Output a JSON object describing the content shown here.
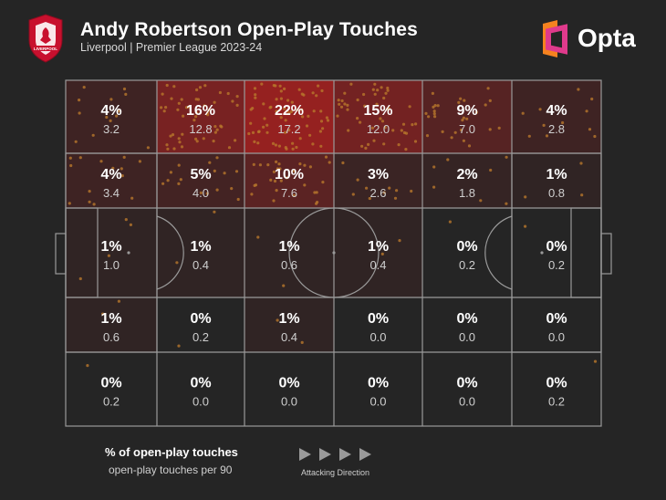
{
  "header": {
    "title": "Andy Robertson Open-Play Touches",
    "subtitle": "Liverpool | Premier League 2023-24",
    "crest_text": "LIVERPOOL",
    "brand": "Opta"
  },
  "chart_data": {
    "type": "heatmap",
    "title": "Andy Robertson Open-Play Touches",
    "subtitle": "Liverpool | Premier League 2023-24",
    "grid": {
      "rows": 5,
      "cols": 6
    },
    "cells": [
      [
        {
          "pct": "4%",
          "per90": "3.2",
          "share": 4
        },
        {
          "pct": "16%",
          "per90": "12.8",
          "share": 16
        },
        {
          "pct": "22%",
          "per90": "17.2",
          "share": 22
        },
        {
          "pct": "15%",
          "per90": "12.0",
          "share": 15
        },
        {
          "pct": "9%",
          "per90": "7.0",
          "share": 9
        },
        {
          "pct": "4%",
          "per90": "2.8",
          "share": 4
        }
      ],
      [
        {
          "pct": "4%",
          "per90": "3.4",
          "share": 4
        },
        {
          "pct": "5%",
          "per90": "4.0",
          "share": 5
        },
        {
          "pct": "10%",
          "per90": "7.6",
          "share": 10
        },
        {
          "pct": "3%",
          "per90": "2.6",
          "share": 3
        },
        {
          "pct": "2%",
          "per90": "1.8",
          "share": 2
        },
        {
          "pct": "1%",
          "per90": "0.8",
          "share": 1
        }
      ],
      [
        {
          "pct": "1%",
          "per90": "1.0",
          "share": 1
        },
        {
          "pct": "1%",
          "per90": "0.4",
          "share": 1
        },
        {
          "pct": "1%",
          "per90": "0.6",
          "share": 1
        },
        {
          "pct": "1%",
          "per90": "0.4",
          "share": 1
        },
        {
          "pct": "0%",
          "per90": "0.2",
          "share": 0
        },
        {
          "pct": "0%",
          "per90": "0.2",
          "share": 0
        }
      ],
      [
        {
          "pct": "1%",
          "per90": "0.6",
          "share": 1
        },
        {
          "pct": "0%",
          "per90": "0.2",
          "share": 0
        },
        {
          "pct": "1%",
          "per90": "0.4",
          "share": 1
        },
        {
          "pct": "0%",
          "per90": "0.0",
          "share": 0
        },
        {
          "pct": "0%",
          "per90": "0.0",
          "share": 0
        },
        {
          "pct": "0%",
          "per90": "0.0",
          "share": 0
        }
      ],
      [
        {
          "pct": "0%",
          "per90": "0.2",
          "share": 0
        },
        {
          "pct": "0%",
          "per90": "0.0",
          "share": 0
        },
        {
          "pct": "0%",
          "per90": "0.0",
          "share": 0
        },
        {
          "pct": "0%",
          "per90": "0.0",
          "share": 0
        },
        {
          "pct": "0%",
          "per90": "0.0",
          "share": 0
        },
        {
          "pct": "0%",
          "per90": "0.2",
          "share": 0
        }
      ]
    ],
    "attacking_direction": "left-to-right"
  },
  "legend": {
    "pct_label": "% of open-play touches",
    "per90_label": "open-play touches per 90",
    "direction_label": "Attacking Direction"
  },
  "colors": {
    "background": "#252525",
    "pitch_lines": "#9a9a9a",
    "heat": "#c0201f",
    "dots": "#b8772c",
    "opta_orange": "#f5821f",
    "opta_pink": "#e03a8c",
    "crest_red": "#c8102e"
  }
}
